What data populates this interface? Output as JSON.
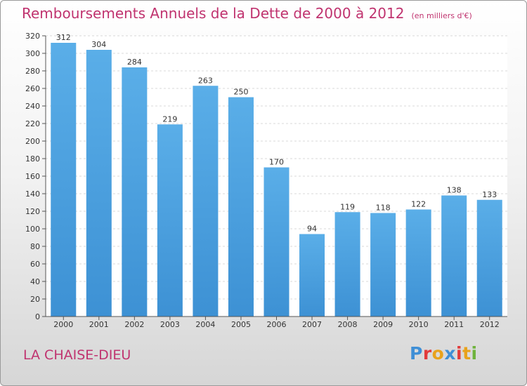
{
  "header": {
    "title": "Remboursements Annuels de la Dette de 2000 à 2012",
    "subtitle": "(en milliers d'€)"
  },
  "footer": {
    "city": "LA CHAISE-DIEU",
    "logo_text": "Proxiti",
    "logo_colors": [
      "#3f8fd6",
      "#e23b3b",
      "#e8a21c",
      "#3f8fd6",
      "#e23b3b",
      "#e8a21c",
      "#6fb33c"
    ]
  },
  "chart_data": {
    "type": "bar",
    "title": "Remboursements Annuels de la Dette de 2000 à 2012",
    "subtitle": "(en milliers d'€)",
    "categories": [
      "2000",
      "2001",
      "2002",
      "2003",
      "2004",
      "2005",
      "2006",
      "2007",
      "2008",
      "2009",
      "2010",
      "2011",
      "2012"
    ],
    "values": [
      312,
      304,
      284,
      219,
      263,
      250,
      170,
      94,
      119,
      118,
      122,
      138,
      133
    ],
    "ylim": [
      0,
      320
    ],
    "yticks": [
      0,
      20,
      40,
      60,
      80,
      100,
      120,
      140,
      160,
      180,
      200,
      220,
      240,
      260,
      280,
      300,
      320
    ],
    "grid": true,
    "bar_color": "#3d91d4",
    "bar_color_light": "#5aaee8"
  }
}
